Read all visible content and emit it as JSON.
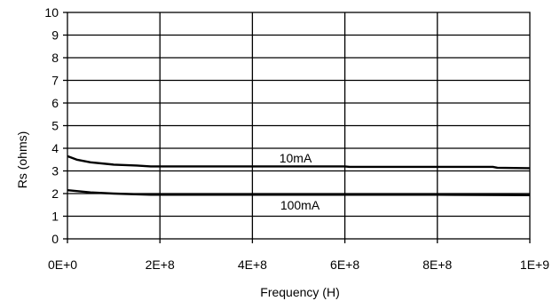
{
  "chart_data": {
    "type": "line",
    "xlabel": "Frequency (H)",
    "ylabel": "Rs (ohms)",
    "xlim": [
      0,
      1000000000
    ],
    "ylim": [
      0,
      10
    ],
    "grid": true,
    "legend": "none",
    "x_ticks": [
      {
        "value": 0,
        "label": "0E+0"
      },
      {
        "value": 200000000,
        "label": "2E+8"
      },
      {
        "value": 400000000,
        "label": "4E+8"
      },
      {
        "value": 600000000,
        "label": "6E+8"
      },
      {
        "value": 800000000,
        "label": "8E+8"
      },
      {
        "value": 1000000000,
        "label": "1E+9"
      }
    ],
    "y_ticks": [
      {
        "value": 0,
        "label": "0"
      },
      {
        "value": 1,
        "label": "1"
      },
      {
        "value": 2,
        "label": "2"
      },
      {
        "value": 3,
        "label": "3"
      },
      {
        "value": 4,
        "label": "4"
      },
      {
        "value": 5,
        "label": "5"
      },
      {
        "value": 6,
        "label": "6"
      },
      {
        "value": 7,
        "label": "7"
      },
      {
        "value": 8,
        "label": "8"
      },
      {
        "value": 9,
        "label": "9"
      },
      {
        "value": 10,
        "label": "10"
      }
    ],
    "series": [
      {
        "name": "10mA",
        "color": "#000000",
        "x": [
          0,
          20000000,
          50000000,
          100000000,
          150000000,
          180000000,
          300000000,
          500000000,
          600000000,
          610000000,
          800000000,
          920000000,
          930000000,
          1000000000
        ],
        "y": [
          3.65,
          3.5,
          3.38,
          3.28,
          3.24,
          3.2,
          3.2,
          3.2,
          3.2,
          3.18,
          3.18,
          3.18,
          3.14,
          3.12
        ]
      },
      {
        "name": "100mA",
        "color": "#000000",
        "x": [
          0,
          50000000,
          100000000,
          180000000,
          300000000,
          600000000,
          800000000,
          1000000000
        ],
        "y": [
          2.15,
          2.05,
          2.0,
          1.95,
          1.95,
          1.95,
          1.95,
          1.93
        ]
      }
    ]
  }
}
